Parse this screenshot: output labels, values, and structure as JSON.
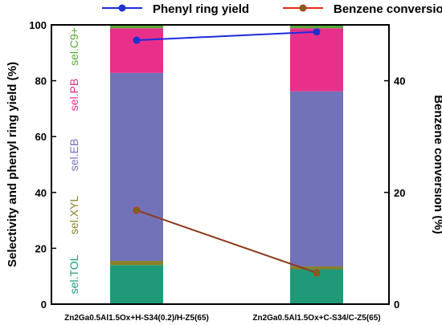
{
  "chart_data": {
    "type": "bar",
    "subtype": "stacked-bar-with-lines",
    "categories": [
      "Zn2Ga0.5Al1.5Ox+H-S34(0.2)/H-Z5(65)",
      "Zn2Ga0.5Al1.5Ox+C-S34/C-Z5(65)"
    ],
    "series": [
      {
        "name": "sel.TOL",
        "color": "#1f9a78",
        "values": [
          14,
          12.5
        ]
      },
      {
        "name": "sel.XYL",
        "color": "#8a7f2a",
        "values": [
          1.5,
          1.0
        ]
      },
      {
        "name": "sel.EB",
        "color": "#7272b8",
        "values": [
          67.3,
          62.7
        ]
      },
      {
        "name": "sel.PB",
        "color": "#e8308a",
        "values": [
          16,
          22.6
        ]
      },
      {
        "name": "sel.C9+",
        "color": "#5aa63a",
        "values": [
          1.2,
          1.2
        ]
      }
    ],
    "lines": [
      {
        "name": "Phenyl ring yield",
        "color": "#1a2be0",
        "marker_fill": "#2433c8",
        "axis": "left",
        "values": [
          94.5,
          97.5
        ]
      },
      {
        "name": "Benzene conversion",
        "color": "#e02a1a",
        "marker_fill": "#6b6b1a",
        "axis": "right",
        "values": [
          16.8,
          5.6
        ]
      }
    ],
    "ylabel": "Selectivity and phenyl ring yield  (%)",
    "ylim": [
      0,
      100
    ],
    "yticks": [
      "0",
      "20",
      "40",
      "60",
      "80",
      "100"
    ],
    "y2label": "Benzene conversion  (%)",
    "y2lim": [
      0,
      50
    ],
    "y2ticks": [
      "0",
      "20",
      "40"
    ],
    "legend_placement": "top",
    "grid": false
  }
}
